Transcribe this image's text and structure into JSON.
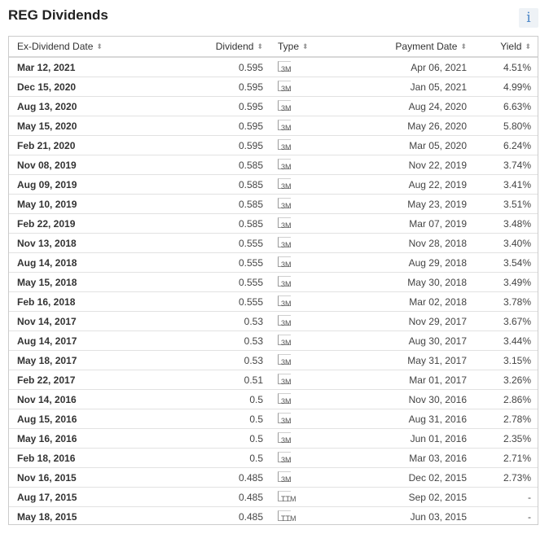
{
  "header": {
    "title": "REG Dividends",
    "info_icon": "info-icon",
    "info_glyph": "i"
  },
  "table": {
    "columns": [
      "Ex-Dividend Date",
      "Dividend",
      "Type",
      "Payment Date",
      "Yield"
    ],
    "sort_icon": "sort-icon",
    "rows": [
      {
        "ex_date": "Mar 12, 2021",
        "dividend": "0.595",
        "type": "3M",
        "pay_date": "Apr 06, 2021",
        "yield": "4.51%"
      },
      {
        "ex_date": "Dec 15, 2020",
        "dividend": "0.595",
        "type": "3M",
        "pay_date": "Jan 05, 2021",
        "yield": "4.99%"
      },
      {
        "ex_date": "Aug 13, 2020",
        "dividend": "0.595",
        "type": "3M",
        "pay_date": "Aug 24, 2020",
        "yield": "6.63%"
      },
      {
        "ex_date": "May 15, 2020",
        "dividend": "0.595",
        "type": "3M",
        "pay_date": "May 26, 2020",
        "yield": "5.80%"
      },
      {
        "ex_date": "Feb 21, 2020",
        "dividend": "0.595",
        "type": "3M",
        "pay_date": "Mar 05, 2020",
        "yield": "6.24%"
      },
      {
        "ex_date": "Nov 08, 2019",
        "dividend": "0.585",
        "type": "3M",
        "pay_date": "Nov 22, 2019",
        "yield": "3.74%"
      },
      {
        "ex_date": "Aug 09, 2019",
        "dividend": "0.585",
        "type": "3M",
        "pay_date": "Aug 22, 2019",
        "yield": "3.41%"
      },
      {
        "ex_date": "May 10, 2019",
        "dividend": "0.585",
        "type": "3M",
        "pay_date": "May 23, 2019",
        "yield": "3.51%"
      },
      {
        "ex_date": "Feb 22, 2019",
        "dividend": "0.585",
        "type": "3M",
        "pay_date": "Mar 07, 2019",
        "yield": "3.48%"
      },
      {
        "ex_date": "Nov 13, 2018",
        "dividend": "0.555",
        "type": "3M",
        "pay_date": "Nov 28, 2018",
        "yield": "3.40%"
      },
      {
        "ex_date": "Aug 14, 2018",
        "dividend": "0.555",
        "type": "3M",
        "pay_date": "Aug 29, 2018",
        "yield": "3.54%"
      },
      {
        "ex_date": "May 15, 2018",
        "dividend": "0.555",
        "type": "3M",
        "pay_date": "May 30, 2018",
        "yield": "3.49%"
      },
      {
        "ex_date": "Feb 16, 2018",
        "dividend": "0.555",
        "type": "3M",
        "pay_date": "Mar 02, 2018",
        "yield": "3.78%"
      },
      {
        "ex_date": "Nov 14, 2017",
        "dividend": "0.53",
        "type": "3M",
        "pay_date": "Nov 29, 2017",
        "yield": "3.67%"
      },
      {
        "ex_date": "Aug 14, 2017",
        "dividend": "0.53",
        "type": "3M",
        "pay_date": "Aug 30, 2017",
        "yield": "3.44%"
      },
      {
        "ex_date": "May 18, 2017",
        "dividend": "0.53",
        "type": "3M",
        "pay_date": "May 31, 2017",
        "yield": "3.15%"
      },
      {
        "ex_date": "Feb 22, 2017",
        "dividend": "0.51",
        "type": "3M",
        "pay_date": "Mar 01, 2017",
        "yield": "3.26%"
      },
      {
        "ex_date": "Nov 14, 2016",
        "dividend": "0.5",
        "type": "3M",
        "pay_date": "Nov 30, 2016",
        "yield": "2.86%"
      },
      {
        "ex_date": "Aug 15, 2016",
        "dividend": "0.5",
        "type": "3M",
        "pay_date": "Aug 31, 2016",
        "yield": "2.78%"
      },
      {
        "ex_date": "May 16, 2016",
        "dividend": "0.5",
        "type": "3M",
        "pay_date": "Jun 01, 2016",
        "yield": "2.35%"
      },
      {
        "ex_date": "Feb 18, 2016",
        "dividend": "0.5",
        "type": "3M",
        "pay_date": "Mar 03, 2016",
        "yield": "2.71%"
      },
      {
        "ex_date": "Nov 16, 2015",
        "dividend": "0.485",
        "type": "3M",
        "pay_date": "Dec 02, 2015",
        "yield": "2.73%"
      },
      {
        "ex_date": "Aug 17, 2015",
        "dividend": "0.485",
        "type": "TTM",
        "pay_date": "Sep 02, 2015",
        "yield": "-"
      },
      {
        "ex_date": "May 18, 2015",
        "dividend": "0.485",
        "type": "TTM",
        "pay_date": "Jun 03, 2015",
        "yield": "-"
      }
    ]
  }
}
